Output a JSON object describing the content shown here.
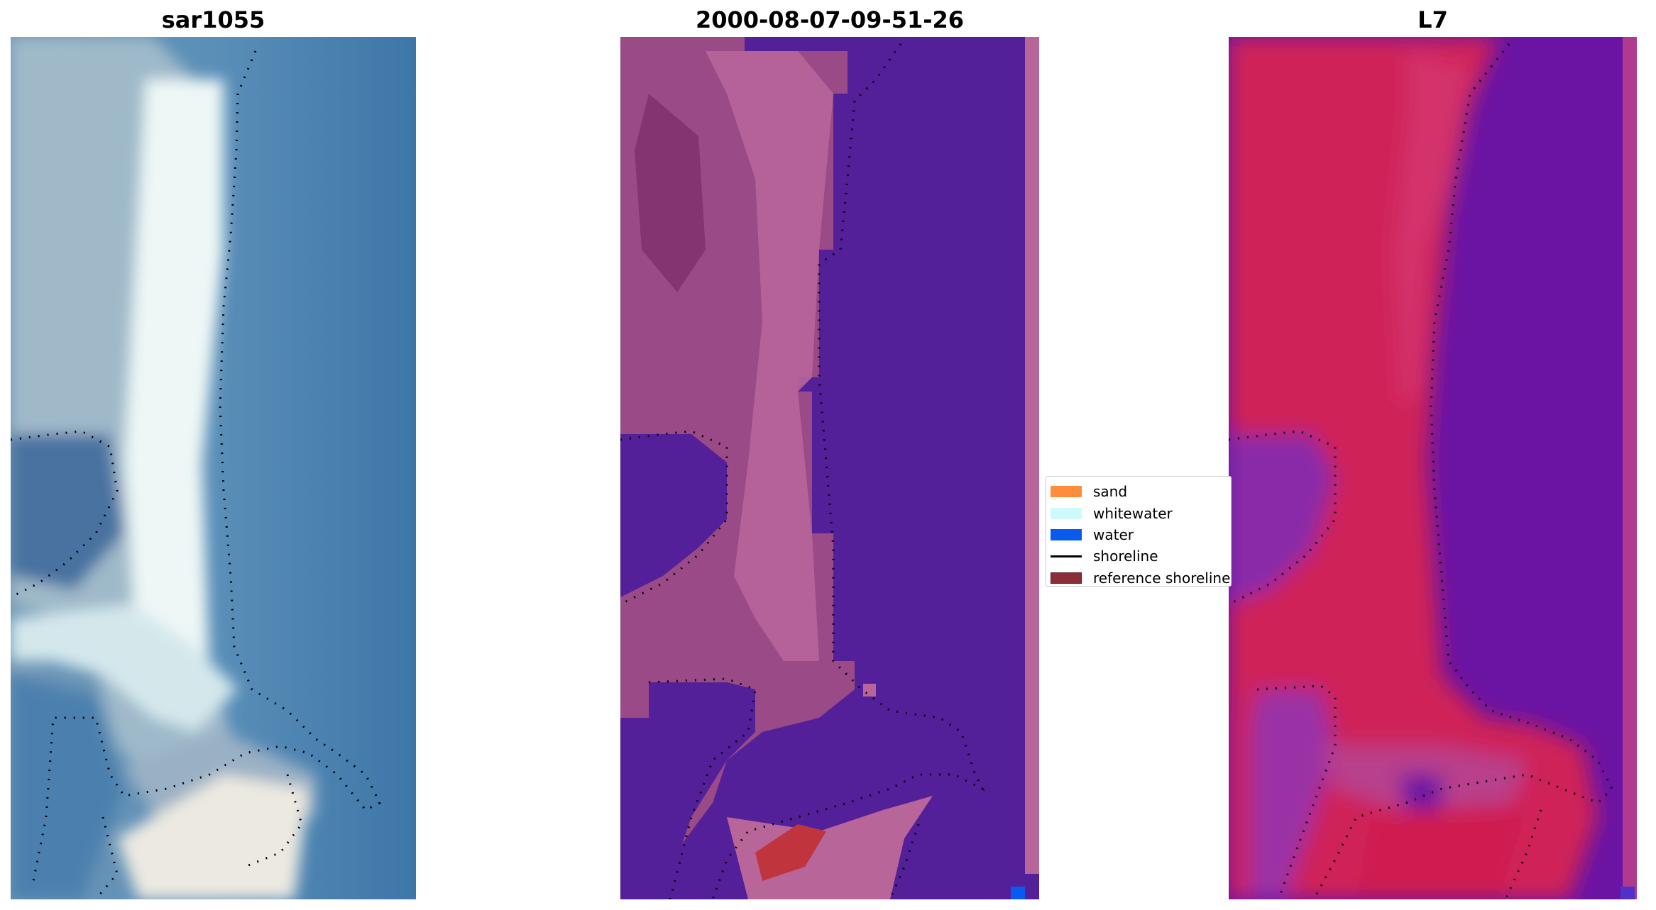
{
  "panels": {
    "rgb": {
      "title": "sar1055"
    },
    "classification": {
      "title": "2000-08-07-09-51-26"
    },
    "mndwi": {
      "title": "L7"
    }
  },
  "legend": {
    "items": [
      {
        "label": "sand",
        "color": "#ff8c3a",
        "kind": "patch"
      },
      {
        "label": "whitewater",
        "color": "#cdfbfb",
        "kind": "patch"
      },
      {
        "label": "water",
        "color": "#0a5af0",
        "kind": "patch"
      },
      {
        "label": "shoreline",
        "color": "#000000",
        "kind": "line"
      },
      {
        "label": "reference shoreline",
        "color": "#8b2e38",
        "kind": "patch"
      }
    ]
  },
  "colors": {
    "rgb_water": "#3d76a8",
    "rgb_whitewater": "#e8f4f4",
    "rgb_sand_light": "#c8d8dc",
    "cls_land": "#9a4a86",
    "cls_land_light": "#b8659a",
    "cls_water": "#54209a",
    "cls_sand_red": "#c0343e",
    "mndwi_land": "#cf2458",
    "mndwi_water": "#6a14a4",
    "mndwi_mid": "#b83f8c"
  }
}
